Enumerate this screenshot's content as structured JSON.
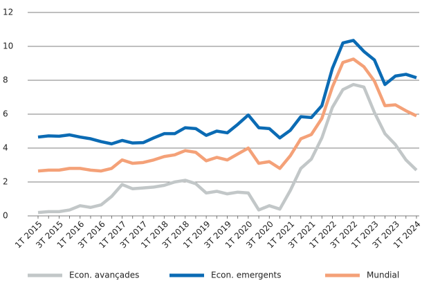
{
  "chart_data": {
    "type": "line",
    "categories": [
      "1T 2015",
      null,
      "3T 2015",
      null,
      "1T 2016",
      null,
      "3T 2016",
      null,
      "1T 2017",
      null,
      "3T 2017",
      null,
      "1T 2018",
      null,
      "3T 2018",
      null,
      "1T 2019",
      null,
      "3T 2019",
      null,
      "1T 2020",
      null,
      "3T 2020",
      null,
      "1T 2021",
      null,
      "3T 2021",
      null,
      "1T 2022",
      null,
      "3T 2022",
      null,
      "1T 2023",
      null,
      "3T 2023",
      null,
      "1T 2024"
    ],
    "series": [
      {
        "name": "Econ. avançades",
        "color": "#c2c7c8",
        "values": [
          0.2,
          0.25,
          0.25,
          0.35,
          0.6,
          0.5,
          0.65,
          1.15,
          1.85,
          1.6,
          1.65,
          1.7,
          1.8,
          2.0,
          2.1,
          1.9,
          1.35,
          1.45,
          1.3,
          1.4,
          1.35,
          0.35,
          0.6,
          0.4,
          1.5,
          2.8,
          3.35,
          4.6,
          6.4,
          7.45,
          7.75,
          7.6,
          6.1,
          4.85,
          4.2,
          3.3,
          2.7
        ]
      },
      {
        "name": "Econ. emergents",
        "color": "#0b6bb4",
        "values": [
          4.65,
          4.72,
          4.7,
          4.78,
          4.65,
          4.55,
          4.38,
          4.25,
          4.45,
          4.3,
          4.32,
          4.6,
          4.85,
          4.85,
          5.2,
          5.15,
          4.75,
          5.0,
          4.9,
          5.4,
          5.95,
          5.2,
          5.15,
          4.6,
          5.05,
          5.85,
          5.8,
          6.5,
          8.7,
          10.2,
          10.35,
          9.7,
          9.2,
          7.75,
          8.25,
          8.35,
          8.15
        ]
      },
      {
        "name": "Mundial",
        "color": "#f4a178",
        "values": [
          2.65,
          2.7,
          2.7,
          2.8,
          2.8,
          2.7,
          2.65,
          2.8,
          3.3,
          3.1,
          3.15,
          3.3,
          3.5,
          3.6,
          3.85,
          3.75,
          3.25,
          3.45,
          3.3,
          3.65,
          4.0,
          3.1,
          3.2,
          2.8,
          3.55,
          4.55,
          4.8,
          5.75,
          7.6,
          9.05,
          9.25,
          8.8,
          7.95,
          6.5,
          6.55,
          6.2,
          5.9
        ]
      }
    ],
    "ylim": [
      0,
      12
    ],
    "yticks": [
      0,
      2,
      4,
      6,
      8,
      10,
      12
    ],
    "grid": true
  }
}
